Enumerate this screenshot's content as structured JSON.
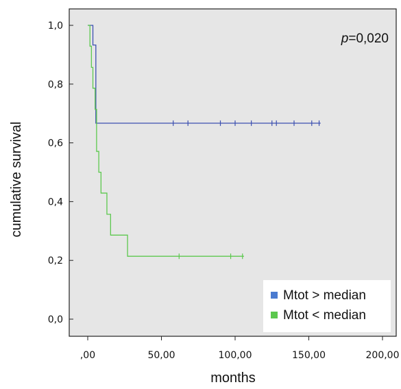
{
  "chart_data": {
    "type": "line",
    "subtype": "kaplan-meier",
    "title": "",
    "xlabel": "months",
    "ylabel": "cumulative survival",
    "xlim": [
      0,
      200
    ],
    "ylim": [
      0,
      1
    ],
    "x_ticks": [
      ",00",
      "50,00",
      "100,00",
      "150,00",
      "200,00"
    ],
    "y_ticks": [
      "0,0",
      "0,2",
      "0,4",
      "0,6",
      "0,8",
      "1,0"
    ],
    "grid": false,
    "background": "#e6e6e6",
    "annotation": {
      "italic": "p",
      "text": "=0,020",
      "position": "top-right"
    },
    "legend_position": "bottom-right",
    "series": [
      {
        "name": "Mtot > median",
        "color": "#3b4fb0",
        "legend_color": "#4a7bd0",
        "steps": [
          [
            0,
            1.0
          ],
          [
            3.5,
            0.933
          ],
          [
            5.5,
            0.667
          ],
          [
            158,
            0.667
          ]
        ],
        "censored_x": [
          58,
          68,
          90,
          100,
          111,
          125,
          128,
          140,
          152,
          157
        ]
      },
      {
        "name": "Mtot < median",
        "color": "#5cc84e",
        "legend_color": "#5cc84e",
        "steps": [
          [
            0,
            1.0
          ],
          [
            1.5,
            0.929
          ],
          [
            2.5,
            0.857
          ],
          [
            3.5,
            0.786
          ],
          [
            5,
            0.714
          ],
          [
            6,
            0.571
          ],
          [
            7.5,
            0.5
          ],
          [
            9,
            0.429
          ],
          [
            13,
            0.357
          ],
          [
            15.5,
            0.286
          ],
          [
            27,
            0.214
          ],
          [
            106,
            0.214
          ]
        ],
        "censored_x": [
          62,
          97,
          105
        ]
      }
    ]
  }
}
